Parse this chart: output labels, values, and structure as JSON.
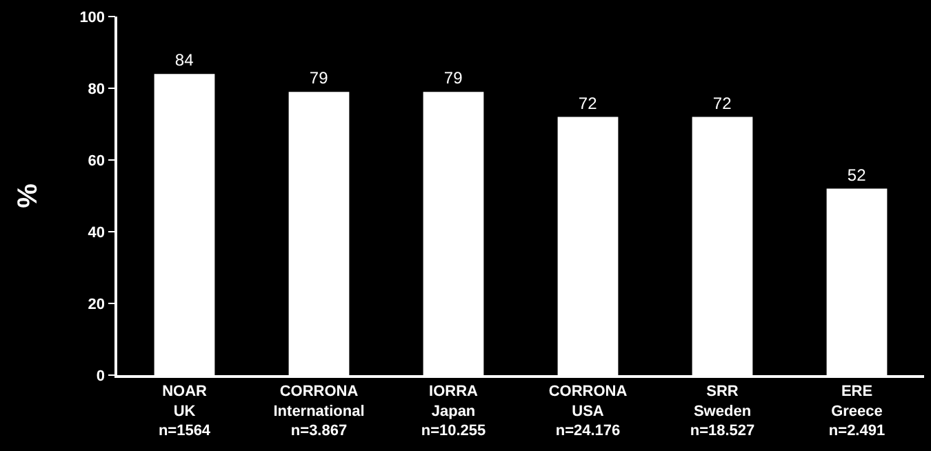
{
  "chart_data": {
    "type": "bar",
    "ylabel": "%",
    "categories": [
      "NOAR\nUK\nn=1564",
      "CORRONA\nInternational\nn=3.867",
      "IORRA\nJapan\nn=10.255",
      "CORRONA\nUSA\nn=24.176",
      "SRR\nSweden\nn=18.527",
      "ERE\nGreece\nn=2.491"
    ],
    "values": [
      84,
      79,
      79,
      72,
      72,
      52
    ],
    "color": "#ffffff",
    "ylim": [
      0,
      100
    ],
    "yticks": [
      0,
      20,
      40,
      60,
      80,
      100
    ],
    "grid": false,
    "data_labels": true
  }
}
